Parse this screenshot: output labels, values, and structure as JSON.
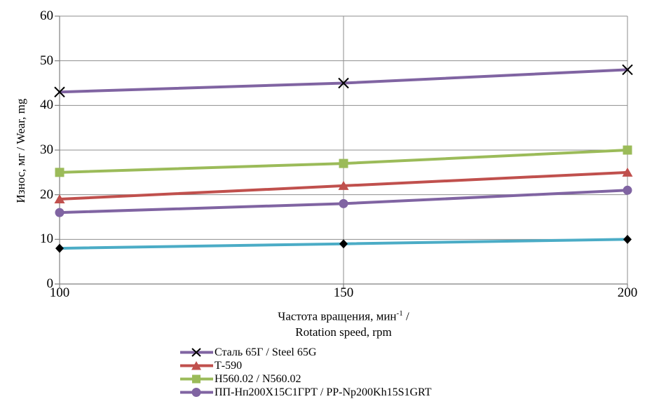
{
  "chart_data": {
    "type": "line",
    "x": [
      100,
      150,
      200
    ],
    "x_ticks": [
      "100",
      "150",
      "200"
    ],
    "y_ticks": [
      0,
      10,
      20,
      30,
      40,
      50,
      60
    ],
    "ylim": [
      0,
      60
    ],
    "xlim": [
      100,
      200
    ],
    "grid": true,
    "legend_position": "bottom-left",
    "ylabel": "Износ, мг / Wear, mg",
    "xlabel_line1_prefix": "Частота вращения, мин",
    "xlabel_line1_sup": "-1",
    "xlabel_line1_suffix": " /",
    "xlabel_line2": "Rotation speed, rpm",
    "series": [
      {
        "name": "Сталь 65Г / Steel 65G",
        "values": [
          43,
          45,
          48
        ],
        "color": "#8064A2",
        "marker": "x",
        "marker_color": "#000000",
        "in_legend": true
      },
      {
        "name": "Т-590",
        "values": [
          19,
          22,
          25
        ],
        "color": "#C0504D",
        "marker": "triangle",
        "marker_color": "#C0504D",
        "in_legend": true
      },
      {
        "name": "Н560.02 / N560.02",
        "values": [
          25,
          27,
          30
        ],
        "color": "#9BBB59",
        "marker": "square",
        "marker_color": "#9BBB59",
        "in_legend": true
      },
      {
        "name": "ПП-Нп200Х15С1ГРТ / PP-Np200Kh15S1GRT",
        "values": [
          16,
          18,
          21
        ],
        "color": "#8064A2",
        "marker": "circle",
        "marker_color": "#8064A2",
        "in_legend": true
      },
      {
        "name": "",
        "values": [
          8,
          9,
          10
        ],
        "color": "#4BACC6",
        "marker": "diamond",
        "marker_color": "#000000",
        "in_legend": false
      }
    ],
    "colors": {
      "gridline": "#8e8e8e",
      "axis": "#7f7f7f"
    }
  }
}
